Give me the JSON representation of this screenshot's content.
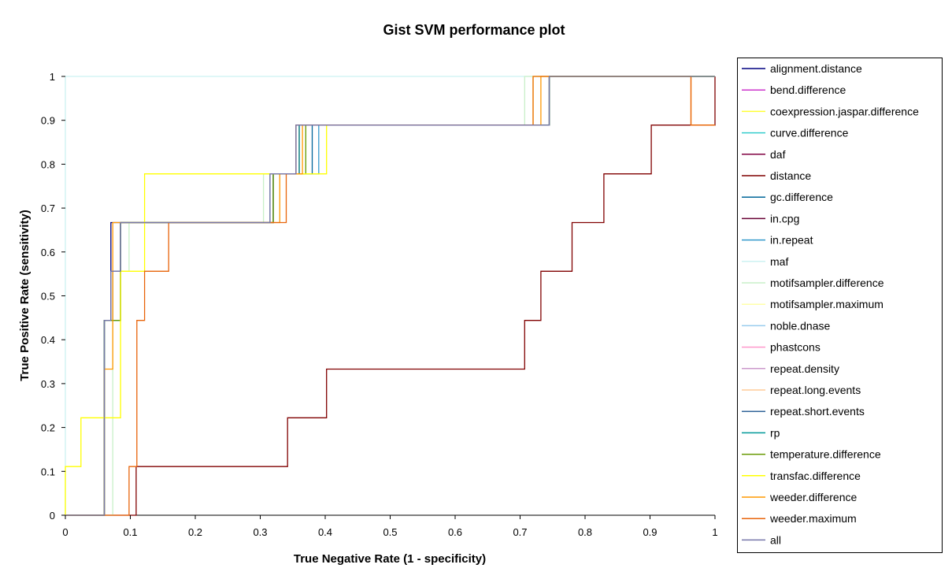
{
  "chart_data": {
    "type": "line",
    "title": "Gist SVM performance plot",
    "xlabel": "True Negative Rate (1 - specificity)",
    "ylabel": "True Positive Rate (sensitivity)",
    "xlim": [
      0,
      1
    ],
    "ylim": [
      0,
      1
    ],
    "xticks": [
      "0",
      "0.1",
      "0.2",
      "0.3",
      "0.4",
      "0.5",
      "0.6",
      "0.7",
      "0.8",
      "0.9",
      "1"
    ],
    "yticks": [
      "0",
      "0.1",
      "0.2",
      "0.3",
      "0.4",
      "0.5",
      "0.6",
      "0.7",
      "0.8",
      "0.9",
      "1"
    ],
    "grid": false,
    "legend_position": "right",
    "series": [
      {
        "name": "alignment.distance",
        "color": "#000080",
        "x": [
          0,
          0.06,
          0.06,
          0.07,
          0.07,
          0.085,
          0.085,
          0.32,
          0.32,
          0.36,
          0.36,
          0.745,
          0.745,
          1,
          1
        ],
        "y": [
          0,
          0,
          0.444,
          0.444,
          0.667,
          0.667,
          0.667,
          0.667,
          0.778,
          0.778,
          0.889,
          0.889,
          1,
          1,
          1
        ]
      },
      {
        "name": "bend.difference",
        "color": "#cc33cc",
        "x": [
          0,
          0.06,
          0.06,
          0.085,
          0.085,
          0.32,
          0.32,
          0.36,
          0.36,
          0.745,
          0.745,
          1
        ],
        "y": [
          0,
          0,
          0.444,
          0.444,
          0.667,
          0.667,
          0.778,
          0.778,
          0.889,
          0.889,
          1,
          1
        ]
      },
      {
        "name": "coexpression.jaspar.difference",
        "color": "#ffff33",
        "x": [
          0,
          0.06,
          0.06,
          0.085,
          0.085,
          0.32,
          0.32,
          0.36,
          0.36,
          0.745,
          0.745,
          1
        ],
        "y": [
          0,
          0,
          0.444,
          0.444,
          0.667,
          0.667,
          0.778,
          0.778,
          0.889,
          0.889,
          1,
          1
        ]
      },
      {
        "name": "curve.difference",
        "color": "#33cccc",
        "x": [
          0,
          0.06,
          0.06,
          0.085,
          0.085,
          0.32,
          0.32,
          0.36,
          0.36,
          0.745,
          0.745,
          1
        ],
        "y": [
          0,
          0,
          0.444,
          0.444,
          0.667,
          0.667,
          0.778,
          0.778,
          0.889,
          0.889,
          1,
          1
        ]
      },
      {
        "name": "daf",
        "color": "#800040",
        "x": [
          0,
          0.06,
          0.06,
          0.085,
          0.085,
          0.32,
          0.32,
          0.36,
          0.36,
          0.745,
          0.745,
          1
        ],
        "y": [
          0,
          0,
          0.444,
          0.444,
          0.667,
          0.667,
          0.778,
          0.778,
          0.889,
          0.889,
          1,
          1
        ]
      },
      {
        "name": "distance",
        "color": "#800000",
        "x": [
          0,
          0.109,
          0.109,
          0.342,
          0.342,
          0.402,
          0.402,
          0.707,
          0.707,
          0.732,
          0.732,
          0.78,
          0.78,
          0.829,
          0.829,
          0.902,
          0.902,
          1,
          1
        ],
        "y": [
          0,
          0,
          0.111,
          0.111,
          0.222,
          0.222,
          0.333,
          0.333,
          0.444,
          0.444,
          0.556,
          0.556,
          0.667,
          0.667,
          0.778,
          0.778,
          0.889,
          0.889,
          1
        ]
      },
      {
        "name": "gc.difference",
        "color": "#006699",
        "x": [
          0,
          0.06,
          0.06,
          0.085,
          0.085,
          0.32,
          0.32,
          0.38,
          0.38,
          0.745,
          0.745,
          1
        ],
        "y": [
          0,
          0,
          0.444,
          0.444,
          0.667,
          0.667,
          0.778,
          0.778,
          0.889,
          0.889,
          1,
          1
        ]
      },
      {
        "name": "in.cpg",
        "color": "#660033",
        "x": [
          0,
          0.06,
          0.06,
          0.085,
          0.085,
          0.32,
          0.32,
          0.36,
          0.36,
          0.745,
          0.745,
          1
        ],
        "y": [
          0,
          0,
          0.444,
          0.444,
          0.667,
          0.667,
          0.778,
          0.778,
          0.889,
          0.889,
          1,
          1
        ]
      },
      {
        "name": "in.repeat",
        "color": "#3399cc",
        "x": [
          0,
          0.06,
          0.06,
          0.085,
          0.085,
          0.32,
          0.32,
          0.39,
          0.39,
          0.745,
          0.745,
          1
        ],
        "y": [
          0,
          0,
          0.444,
          0.444,
          0.667,
          0.667,
          0.778,
          0.778,
          0.889,
          0.889,
          1,
          1
        ]
      },
      {
        "name": "maf",
        "color": "#ccf2f2",
        "x": [
          0,
          0,
          0.707,
          0.707,
          1
        ],
        "y": [
          0,
          1,
          1,
          1,
          1
        ]
      },
      {
        "name": "motifsampler.difference",
        "color": "#c8f0c8",
        "x": [
          0,
          0.073,
          0.073,
          0.098,
          0.098,
          0.305,
          0.305,
          0.37,
          0.37,
          0.707,
          0.707,
          1
        ],
        "y": [
          0,
          0,
          0.556,
          0.556,
          0.667,
          0.667,
          0.778,
          0.778,
          0.889,
          0.889,
          1,
          1
        ]
      },
      {
        "name": "motifsampler.maximum",
        "color": "#ffffaa",
        "x": [
          0,
          0.06,
          0.06,
          0.085,
          0.085,
          0.32,
          0.32,
          0.36,
          0.36,
          0.745,
          0.745,
          1
        ],
        "y": [
          0,
          0,
          0.444,
          0.444,
          0.667,
          0.667,
          0.778,
          0.778,
          0.889,
          0.889,
          1,
          1
        ]
      },
      {
        "name": "noble.dnase",
        "color": "#99ccee",
        "x": [
          0,
          0.06,
          0.06,
          0.085,
          0.085,
          0.32,
          0.32,
          0.36,
          0.36,
          0.745,
          0.745,
          1
        ],
        "y": [
          0,
          0,
          0.444,
          0.444,
          0.667,
          0.667,
          0.778,
          0.778,
          0.889,
          0.889,
          1,
          1
        ]
      },
      {
        "name": "phastcons",
        "color": "#ff99cc",
        "x": [
          0,
          0.06,
          0.06,
          0.085,
          0.085,
          0.32,
          0.32,
          0.36,
          0.36,
          0.745,
          0.745,
          1
        ],
        "y": [
          0,
          0,
          0.444,
          0.444,
          0.667,
          0.667,
          0.778,
          0.778,
          0.889,
          0.889,
          1,
          1
        ]
      },
      {
        "name": "repeat.density",
        "color": "#cc99cc",
        "x": [
          0,
          0.06,
          0.06,
          0.085,
          0.085,
          0.32,
          0.32,
          0.36,
          0.36,
          0.745,
          0.745,
          1
        ],
        "y": [
          0,
          0,
          0.444,
          0.444,
          0.667,
          0.667,
          0.778,
          0.778,
          0.889,
          0.889,
          1,
          1
        ]
      },
      {
        "name": "repeat.long.events",
        "color": "#ffcc99",
        "x": [
          0,
          0.06,
          0.06,
          0.085,
          0.085,
          0.32,
          0.32,
          0.36,
          0.36,
          0.745,
          0.745,
          1
        ],
        "y": [
          0,
          0,
          0.444,
          0.444,
          0.667,
          0.667,
          0.778,
          0.778,
          0.889,
          0.889,
          1,
          1
        ]
      },
      {
        "name": "repeat.short.events",
        "color": "#336699",
        "x": [
          0,
          0.06,
          0.06,
          0.073,
          0.073,
          0.085,
          0.085,
          0.315,
          0.315,
          0.355,
          0.355,
          0.745,
          0.745,
          1
        ],
        "y": [
          0,
          0,
          0.444,
          0.444,
          0.556,
          0.556,
          0.667,
          0.667,
          0.778,
          0.778,
          0.889,
          0.889,
          1,
          1
        ]
      },
      {
        "name": "rp",
        "color": "#009999",
        "x": [
          0,
          0.06,
          0.06,
          0.085,
          0.085,
          0.32,
          0.32,
          0.36,
          0.36,
          0.745,
          0.745,
          1
        ],
        "y": [
          0,
          0,
          0.444,
          0.444,
          0.667,
          0.667,
          0.778,
          0.778,
          0.889,
          0.889,
          1,
          1
        ]
      },
      {
        "name": "temperature.difference",
        "color": "#669900",
        "x": [
          0,
          0.06,
          0.06,
          0.085,
          0.085,
          0.32,
          0.32,
          0.37,
          0.37,
          0.745,
          0.745,
          1
        ],
        "y": [
          0,
          0,
          0.444,
          0.444,
          0.667,
          0.667,
          0.778,
          0.778,
          0.889,
          0.889,
          1,
          1
        ]
      },
      {
        "name": "transfac.difference",
        "color": "#ffff00",
        "x": [
          0,
          0,
          0.024,
          0.024,
          0.085,
          0.085,
          0.122,
          0.122,
          0.305,
          0.305,
          0.402,
          0.402,
          0.72,
          0.72,
          1
        ],
        "y": [
          0,
          0.111,
          0.111,
          0.222,
          0.222,
          0.556,
          0.556,
          0.778,
          0.778,
          0.778,
          0.778,
          0.889,
          0.889,
          1,
          1
        ]
      },
      {
        "name": "weeder.difference",
        "color": "#ff9900",
        "x": [
          0,
          0.06,
          0.06,
          0.073,
          0.073,
          0.085,
          0.085,
          0.33,
          0.33,
          0.365,
          0.365,
          0.732,
          0.732,
          0.963,
          0.963,
          1
        ],
        "y": [
          0,
          0,
          0.333,
          0.333,
          0.667,
          0.667,
          0.667,
          0.667,
          0.778,
          0.778,
          0.889,
          0.889,
          1,
          1,
          0.889,
          0.889
        ]
      },
      {
        "name": "weeder.maximum",
        "color": "#e8640a",
        "x": [
          0,
          0.098,
          0.098,
          0.11,
          0.11,
          0.122,
          0.122,
          0.159,
          0.159,
          0.34,
          0.34,
          0.355,
          0.355,
          0.72,
          0.72,
          0.963,
          0.963,
          1
        ],
        "y": [
          0,
          0,
          0.111,
          0.111,
          0.444,
          0.444,
          0.556,
          0.556,
          0.667,
          0.667,
          0.778,
          0.778,
          0.889,
          0.889,
          1,
          1,
          0.889,
          0.889
        ]
      },
      {
        "name": "all",
        "color": "#7777aa",
        "x": [
          0,
          0.06,
          0.06,
          0.07,
          0.07,
          0.085,
          0.085,
          0.315,
          0.315,
          0.355,
          0.355,
          0.745,
          0.745,
          1
        ],
        "y": [
          0,
          0,
          0.444,
          0.444,
          0.556,
          0.556,
          0.667,
          0.667,
          0.778,
          0.778,
          0.889,
          0.889,
          1,
          1
        ]
      }
    ]
  }
}
